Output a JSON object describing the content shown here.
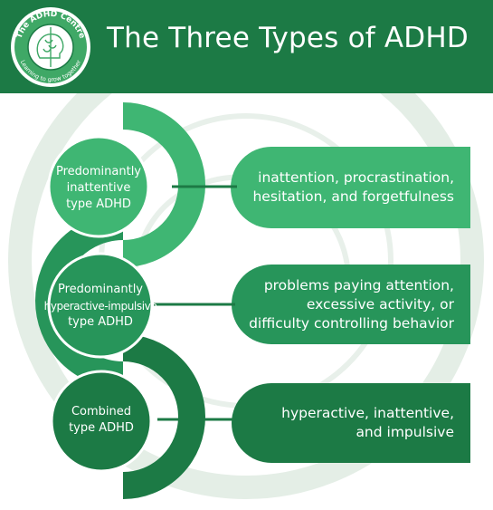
{
  "header": {
    "title": "The Three Types of ADHD",
    "logo": {
      "top_text": "The ADHD Centre",
      "bottom_text": "Learning to grow together"
    }
  },
  "types": [
    {
      "label_lines": [
        "Predominantly",
        "inattentive",
        "type ADHD"
      ],
      "description_lines": [
        "inattention, procrastination,",
        "hesitation, and forgetfulness"
      ]
    },
    {
      "label_lines": [
        "Predominantly",
        "hyperactive-impulsive",
        "type ADHD"
      ],
      "description_lines": [
        "problems paying attention,",
        "excessive activity, or",
        "difficulty controlling behavior"
      ]
    },
    {
      "label_lines": [
        "Combined",
        "type ADHD"
      ],
      "description_lines": [
        "hyperactive, inattentive,",
        "and impulsive"
      ]
    }
  ],
  "colors": {
    "header": "#1c7a45",
    "light_green": "#3fb673",
    "medium_green": "#27955a",
    "dark_green": "#1c7a45",
    "watermark": "#dde9df"
  }
}
